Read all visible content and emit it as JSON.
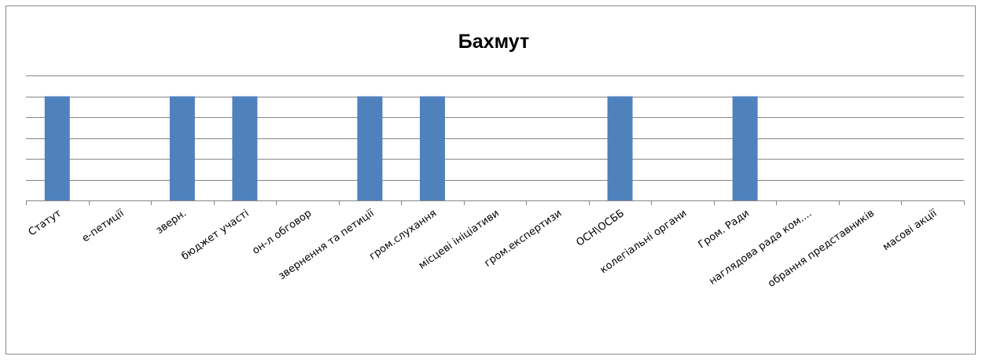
{
  "chart_data": {
    "type": "bar",
    "title": "Бахмут",
    "xlabel": "",
    "ylabel": "",
    "categories": [
      "Статут",
      "е-петиції",
      "зверн.",
      "бюджет участі",
      "он-л обговор",
      "звернення та петиції",
      "гром.слухання",
      "місцеві ініціативи",
      "гром.експертизи",
      "ОСН\\ОСББ",
      "колегіальні органи",
      "Гром. Ради",
      "наглядова рада ком....",
      "обрання представників",
      "масові акції"
    ],
    "values": [
      1,
      0,
      1,
      1,
      0,
      1,
      1,
      0,
      0,
      1,
      0,
      1,
      0,
      0,
      0
    ],
    "ylim": [
      0,
      1.2
    ],
    "grid": true,
    "legend": "none",
    "bar_color": "#4f81bd",
    "gridline_color": "#868686",
    "axis_color": "#868686"
  }
}
